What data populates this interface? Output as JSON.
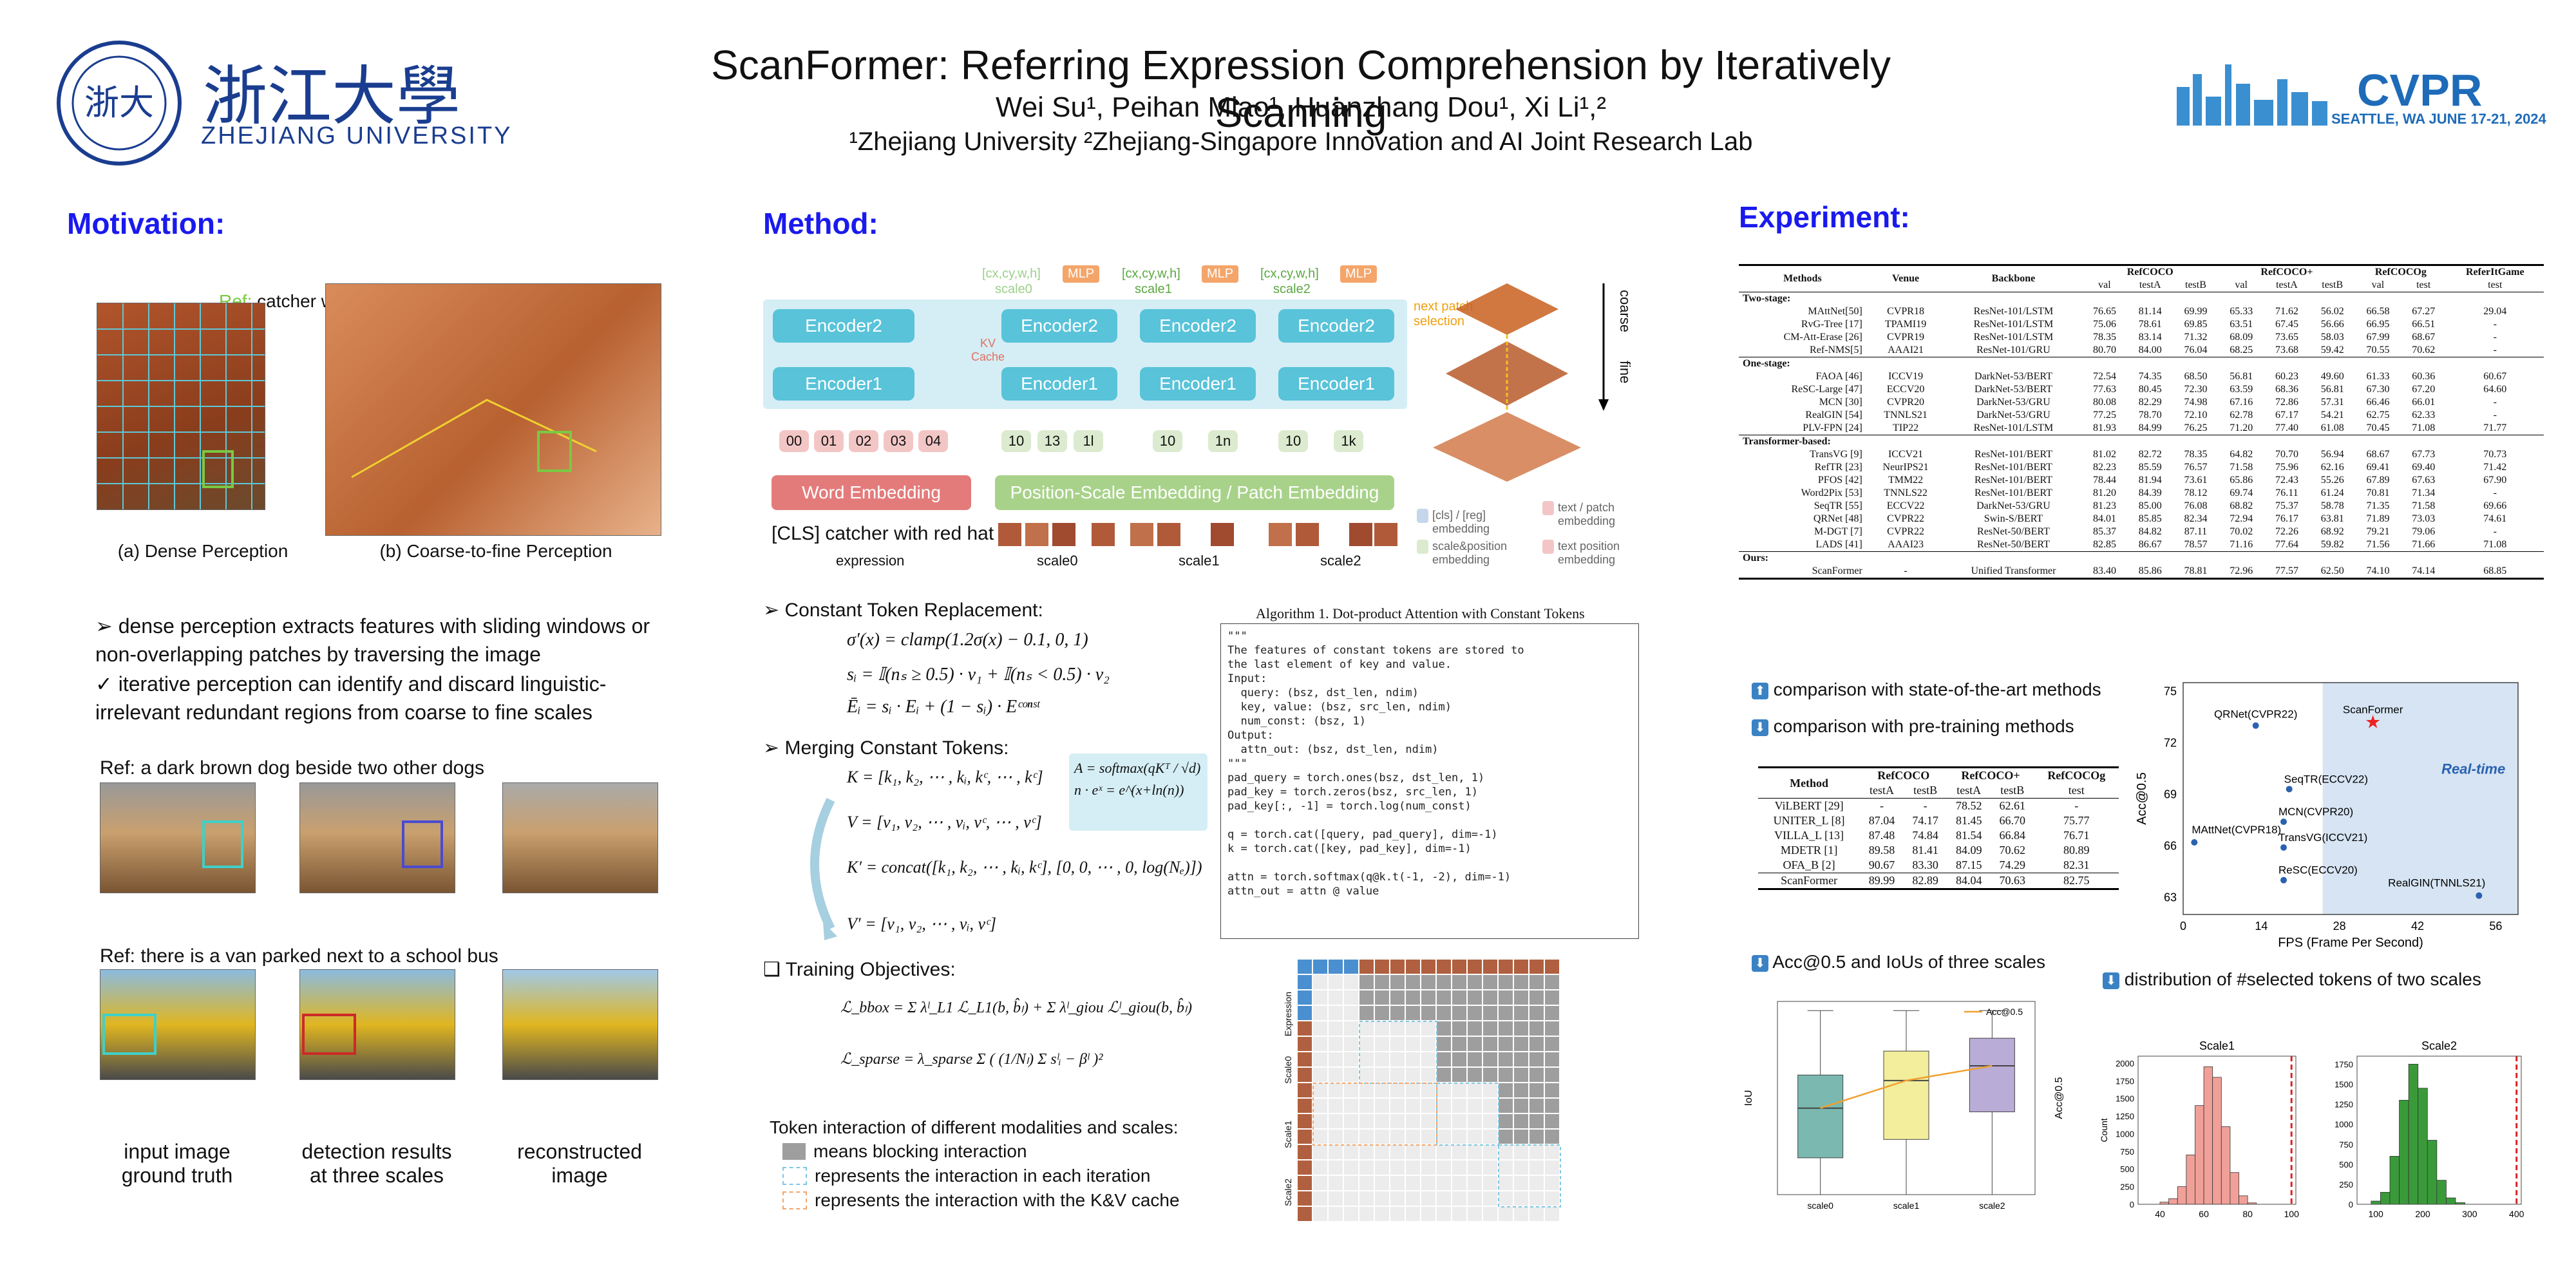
{
  "header": {
    "title": "ScanFormer: Referring Expression Comprehension by Iteratively Scanning",
    "authors": "Wei Su¹, Peihan Miao¹, Huanzhang Dou¹, Xi Li¹,²",
    "affiliations": "¹Zhejiang University ²Zhejiang-Singapore Innovation and AI Joint Research Lab",
    "university_cn": "浙江大學",
    "university_en": "ZHEJIANG UNIVERSITY",
    "cvpr": "CVPR",
    "cvpr_sub": "SEATTLE, WA  JUNE 17-21, 2024"
  },
  "motivation": {
    "heading": "Motivation:",
    "ref_label": "Ref:",
    "ref_text": "catcher with red hat",
    "cap_a": "(a) Dense Perception",
    "cap_b": "(b) Coarse-to-fine Perception",
    "bullet1": "dense perception extracts features with sliding windows or non-overlapping patches by traversing the image",
    "bullet2": "iterative perception can identify and discard linguistic-irrelevant redundant regions from coarse to fine scales",
    "ref1": "Ref: a dark brown dog beside two other dogs",
    "ref2": "Ref: there is a van parked next to a school bus",
    "col1": "input image\nground truth",
    "col2": "detection results\nat three scales",
    "col3": "reconstructed\nimage"
  },
  "method": {
    "heading": "Method:",
    "mlp": "MLP",
    "box": "[cx,cy,w,h]",
    "scale0": "scale0",
    "scale1": "scale1",
    "scale2": "scale2",
    "encoder1": "Encoder1",
    "encoder2": "Encoder2",
    "kv": "KV\nCache",
    "next_patch": "next patch\nselection",
    "coarse": "coarse",
    "fine": "fine",
    "word_emb": "Word Embedding",
    "pos_emb": "Position-Scale Embedding / Patch Embedding",
    "expr_text": "[CLS] catcher with red hat",
    "expression": "expression",
    "legend1": "[cls] / [reg]\nembedding",
    "legend2": "text / patch\nembedding",
    "legend3": "scale&position\nembedding",
    "legend4": "text position\nembedding",
    "tokens_text": [
      "00",
      "01",
      "02",
      "03",
      "04"
    ],
    "tokens_s0": [
      "10",
      "13",
      "1l"
    ],
    "tokens_s1": [
      "10",
      "1n"
    ],
    "tokens_s2": [
      "10",
      "1k"
    ],
    "const_heading": "Constant Token Replacement:",
    "eq1": "σ′(x) = clamp(1.2σ(x) − 0.1, 0, 1)",
    "eq2": "sᵢ = 𝕀(nₛ ≥ 0.5) · v₁ + 𝕀(nₛ < 0.5) · v₂",
    "eq3": "Ēᵢ = sᵢ · Eᵢ + (1 − sᵢ) · Eᶜᵒⁿˢᵗ",
    "merge_heading": "Merging Constant Tokens:",
    "eqK": "K = [k₁, k₂, ⋯ , kᵢ, kᶜ, ⋯ , kᶜ]",
    "eqV": "V = [v₁, v₂, ⋯ , vᵢ, vᶜ, ⋯ , vᶜ]",
    "eqK2": "K′ = concat([k₁, k₂, ⋯ , kᵢ, kᶜ], [0, 0, ⋯ , 0, log(Nₑ)])",
    "eqV2": "V′ = [v₁, v₂, ⋯ , vᵢ, vᶜ]",
    "softmax": "A = softmax(qKᵀ / √d)",
    "softmax2": "n · eˣ = e^(x+ln(n))",
    "train_heading": "Training Objectives:",
    "loss1": "ℒ_bbox = Σ λˡ_L1 ℒ_L1(b, b̂ₗ) + Σ λˡ_giou ℒˡ_giou(b, b̂ₗ)",
    "loss2": "ℒ_sparse = λ_sparse Σ ( (1/Nₗ) Σ sˡᵢ − βˡ )²",
    "algo_title": "Algorithm 1. Dot-product Attention with Constant Tokens",
    "code": "\"\"\"\nThe features of constant tokens are stored to\nthe last element of key and value.\nInput:\n  query: (bsz, dst_len, ndim)\n  key, value: (bsz, src_len, ndim)\n  num_const: (bsz, 1)\nOutput:\n  attn_out: (bsz, dst_len, ndim)\n\"\"\"\npad_query = torch.ones(bsz, dst_len, 1)\npad_key = torch.zeros(bsz, src_len, 1)\npad_key[:, -1] = torch.log(num_const)\n\nq = torch.cat([query, pad_query], dim=-1)\nk = torch.cat([key, pad_key], dim=-1)\n\nattn = torch.softmax(q@k.t(-1, -2), dim=-1)\nattn_out = attn @ value",
    "interaction_title": "Token interaction of different modalities and scales:",
    "inter1": "means blocking interaction",
    "inter2": "represents the interaction in each iteration",
    "inter3": "represents the interaction with the K&V cache",
    "mask_rows": [
      "Expression",
      "Scale0",
      "Scale1",
      "Scale2"
    ]
  },
  "experiment": {
    "heading": "Experiment:",
    "table1_headers": [
      "Methods",
      "Venue",
      "Backbone",
      "RefCOCO",
      "RefCOCO+",
      "RefCOCOg",
      "ReferItGame"
    ],
    "table1_sub": [
      "val",
      "testA",
      "testB",
      "val",
      "testA",
      "testB",
      "val",
      "test",
      "test"
    ],
    "groups": [
      {
        "name": "Two-stage:",
        "rows": [
          [
            "MAttNet[50]",
            "CVPR18",
            "ResNet-101/LSTM",
            "76.65",
            "81.14",
            "69.99",
            "65.33",
            "71.62",
            "56.02",
            "66.58",
            "67.27",
            "29.04"
          ],
          [
            "RvG-Tree [17]",
            "TPAMI19",
            "ResNet-101/LSTM",
            "75.06",
            "78.61",
            "69.85",
            "63.51",
            "67.45",
            "56.66",
            "66.95",
            "66.51",
            "-"
          ],
          [
            "CM-Att-Erase [26]",
            "CVPR19",
            "ResNet-101/LSTM",
            "78.35",
            "83.14",
            "71.32",
            "68.09",
            "73.65",
            "58.03",
            "67.99",
            "68.67",
            "-"
          ],
          [
            "Ref-NMS[5]",
            "AAAI21",
            "ResNet-101/GRU",
            "80.70",
            "84.00",
            "76.04",
            "68.25",
            "73.68",
            "59.42",
            "70.55",
            "70.62",
            "-"
          ]
        ]
      },
      {
        "name": "One-stage:",
        "rows": [
          [
            "FAOA [46]",
            "ICCV19",
            "DarkNet-53/BERT",
            "72.54",
            "74.35",
            "68.50",
            "56.81",
            "60.23",
            "49.60",
            "61.33",
            "60.36",
            "60.67"
          ],
          [
            "ReSC-Large [47]",
            "ECCV20",
            "DarkNet-53/BERT",
            "77.63",
            "80.45",
            "72.30",
            "63.59",
            "68.36",
            "56.81",
            "67.30",
            "67.20",
            "64.60"
          ],
          [
            "MCN [30]",
            "CVPR20",
            "DarkNet-53/GRU",
            "80.08",
            "82.29",
            "74.98",
            "67.16",
            "72.86",
            "57.31",
            "66.46",
            "66.01",
            "-"
          ],
          [
            "RealGIN [54]",
            "TNNLS21",
            "DarkNet-53/GRU",
            "77.25",
            "78.70",
            "72.10",
            "62.78",
            "67.17",
            "54.21",
            "62.75",
            "62.33",
            "-"
          ],
          [
            "PLV-FPN [24]",
            "TIP22",
            "ResNet-101/LSTM",
            "81.93",
            "84.99",
            "76.25",
            "71.20",
            "77.40",
            "61.08",
            "70.45",
            "71.08",
            "71.77"
          ]
        ]
      },
      {
        "name": "Transformer-based:",
        "rows": [
          [
            "TransVG [9]",
            "ICCV21",
            "ResNet-101/BERT",
            "81.02",
            "82.72",
            "78.35",
            "64.82",
            "70.70",
            "56.94",
            "68.67",
            "67.73",
            "70.73"
          ],
          [
            "RefTR [23]",
            "NeurIPS21",
            "ResNet-101/BERT",
            "82.23",
            "85.59",
            "76.57",
            "71.58",
            "75.96",
            "62.16",
            "69.41",
            "69.40",
            "71.42"
          ],
          [
            "PFOS [42]",
            "TMM22",
            "ResNet-101/BERT",
            "78.44",
            "81.94",
            "73.61",
            "65.86",
            "72.43",
            "55.26",
            "67.89",
            "67.63",
            "67.90"
          ],
          [
            "Word2Pix [53]",
            "TNNLS22",
            "ResNet-101/BERT",
            "81.20",
            "84.39",
            "78.12",
            "69.74",
            "76.11",
            "61.24",
            "70.81",
            "71.34",
            "-"
          ],
          [
            "SeqTR [55]",
            "ECCV22",
            "DarkNet-53/GRU",
            "81.23",
            "85.00",
            "76.08",
            "68.82",
            "75.37",
            "58.78",
            "71.35",
            "71.58",
            "69.66"
          ],
          [
            "QRNet [48]",
            "CVPR22",
            "Swin-S/BERT",
            "84.01",
            "85.85",
            "82.34",
            "72.94",
            "76.17",
            "63.81",
            "71.89",
            "73.03",
            "74.61"
          ],
          [
            "M-DGT [7]",
            "CVPR22",
            "ResNet-50/BERT",
            "85.37",
            "84.82",
            "87.11",
            "70.02",
            "72.26",
            "68.92",
            "79.21",
            "79.06",
            "-"
          ],
          [
            "LADS [41]",
            "AAAI23",
            "ResNet-50/BERT",
            "82.85",
            "86.67",
            "78.57",
            "71.16",
            "77.64",
            "59.82",
            "71.56",
            "71.66",
            "71.08"
          ]
        ]
      },
      {
        "name": "Ours:",
        "rows": [
          [
            "ScanFormer",
            "-",
            "Unified Transformer",
            "83.40",
            "85.86",
            "78.81",
            "72.96",
            "77.57",
            "62.50",
            "74.10",
            "74.14",
            "68.85"
          ]
        ]
      }
    ],
    "cmp1": "comparison with state-of-the-art methods",
    "cmp2": "comparison with pre-training methods",
    "table2_headers": [
      "Method",
      "RefCOCO",
      "RefCOCO+",
      "RefCOCOg"
    ],
    "table2_sub": [
      "testA",
      "testB",
      "testA",
      "testB",
      "test"
    ],
    "table2_rows": [
      [
        "ViLBERT [29]",
        "-",
        "-",
        "78.52",
        "62.61",
        "-"
      ],
      [
        "UNITER_L [8]",
        "87.04",
        "74.17",
        "81.45",
        "66.70",
        "75.77"
      ],
      [
        "VILLA_L [13]",
        "87.48",
        "74.84",
        "81.54",
        "66.84",
        "76.71"
      ],
      [
        "MDETR [1]",
        "89.58",
        "81.41",
        "84.09",
        "70.62",
        "80.89"
      ],
      [
        "OFA_B [2]",
        "90.67",
        "83.30",
        "87.15",
        "74.29",
        "82.31"
      ],
      [
        "ScanFormer",
        "89.99",
        "82.89",
        "84.04",
        "70.63",
        "82.75"
      ]
    ],
    "acc_title": "Acc@0.5 and IoUs of three scales",
    "dist_title": "distribution of #selected tokens of two scales"
  },
  "chart_data": [
    {
      "type": "scatter",
      "xlabel": "FPS (Frame Per Second)",
      "ylabel": "Acc@0.5",
      "xlim": [
        0,
        60
      ],
      "ylim": [
        62,
        75.5
      ],
      "xticks": [
        0,
        14,
        28,
        42,
        56
      ],
      "yticks": [
        63,
        66,
        69,
        72,
        75
      ],
      "region_label": "Real-time",
      "region_from_x": 25,
      "points": [
        {
          "label": "QRNet(CVPR22)",
          "x": 13,
          "y": 73.0,
          "color": "#2a62b0"
        },
        {
          "label": "ScanFormer",
          "x": 34,
          "y": 73.2,
          "color": "#ee2222"
        },
        {
          "label": "SeqTR(ECCV22)",
          "x": 19,
          "y": 69.3,
          "color": "#2a62b0"
        },
        {
          "label": "MCN(CVPR20)",
          "x": 18,
          "y": 67.4,
          "color": "#2a62b0"
        },
        {
          "label": "MAttNet(CVPR18)",
          "x": 2,
          "y": 66.2,
          "color": "#2a62b0"
        },
        {
          "label": "TransVG(ICCV21)",
          "x": 18,
          "y": 65.9,
          "color": "#2a62b0"
        },
        {
          "label": "ReSC(ECCV20)",
          "x": 18,
          "y": 64.0,
          "color": "#2a62b0"
        },
        {
          "label": "RealGIN(TNNLS21)",
          "x": 53,
          "y": 63.1,
          "color": "#2a62b0"
        }
      ]
    },
    {
      "type": "box",
      "categories": [
        "scale0",
        "scale1",
        "scale2"
      ],
      "ylabel": "IoU",
      "y2label": "Acc@0.5",
      "ylim": [
        0,
        1.05
      ],
      "colors": [
        "#7ab8b0",
        "#f2ee9c",
        "#b9acd6"
      ],
      "boxes": [
        {
          "min": 0.0,
          "q1": 0.2,
          "median": 0.47,
          "q3": 0.65,
          "max": 1.0
        },
        {
          "min": 0.0,
          "q1": 0.3,
          "median": 0.62,
          "q3": 0.78,
          "max": 1.0
        },
        {
          "min": 0.0,
          "q1": 0.45,
          "median": 0.7,
          "q3": 0.85,
          "max": 1.0
        }
      ],
      "acc_series": {
        "name": "Acc@0.5",
        "values": [
          0.47,
          0.62,
          0.7
        ]
      }
    },
    {
      "type": "bar",
      "title": "Scale1",
      "ylabel": "Count",
      "xticks": [
        40,
        60,
        80,
        100
      ],
      "yticks": [
        0,
        250,
        500,
        750,
        1000,
        1250,
        1500,
        1750,
        2000
      ],
      "xlim": [
        30,
        102
      ],
      "ylim": [
        0,
        2100
      ],
      "color": "#f0a098",
      "cutoff": 100,
      "bins": [
        40,
        44,
        48,
        52,
        56,
        60,
        64,
        68,
        72,
        76,
        80
      ],
      "values": [
        30,
        80,
        250,
        700,
        1400,
        1950,
        1800,
        1100,
        450,
        120,
        20
      ]
    },
    {
      "type": "bar",
      "title": "Scale2",
      "xticks": [
        100,
        200,
        300,
        400
      ],
      "yticks": [
        0,
        250,
        500,
        750,
        1000,
        1250,
        1500,
        1750
      ],
      "xlim": [
        60,
        410
      ],
      "ylim": [
        0,
        1850
      ],
      "color": "#3a9a3a",
      "cutoff": 400,
      "bins": [
        90,
        110,
        130,
        150,
        170,
        190,
        210,
        230,
        250,
        270
      ],
      "values": [
        40,
        150,
        600,
        1300,
        1750,
        1450,
        800,
        300,
        80,
        20
      ]
    }
  ]
}
